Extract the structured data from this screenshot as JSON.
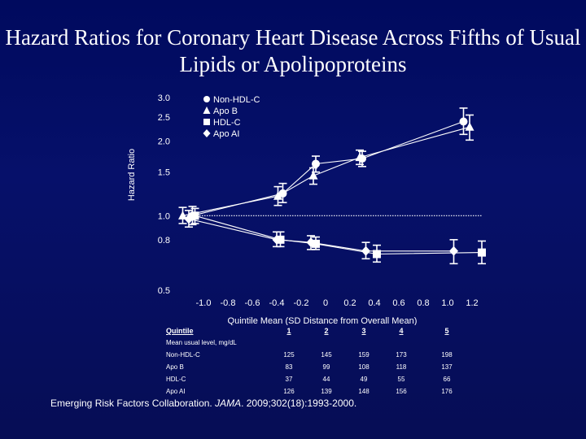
{
  "title": "Hazard Ratios for Coronary Heart Disease Across Fifths of Usual Lipids or Apolipoproteins",
  "chart_data": {
    "type": "line",
    "title": "Hazard Ratios for Coronary Heart Disease Across Fifths of Usual Lipids or Apolipoproteins",
    "xlabel": "Quintile Mean (SD Distance from Overall Mean)",
    "ylabel": "Hazard Ratio",
    "y_scale": "log",
    "xlim": [
      -1.2,
      1.2
    ],
    "ylim": [
      0.5,
      3.0
    ],
    "x_ticks": [
      "-1.0",
      "-0.8",
      "-0.6",
      "-0.4",
      "-0.2",
      "0",
      "0.2",
      "0.4",
      "0.6",
      "0.8",
      "1.0",
      "1.2"
    ],
    "x_tick_values": [
      -1.0,
      -0.8,
      -0.6,
      -0.4,
      -0.2,
      0,
      0.2,
      0.4,
      0.6,
      0.8,
      1.0,
      1.2
    ],
    "y_ticks": [
      "0.5",
      "0.8",
      "1.0",
      "1.5",
      "2.0",
      "2.5",
      "3.0"
    ],
    "y_tick_values": [
      0.5,
      0.8,
      1.0,
      1.5,
      2.0,
      2.5,
      3.0
    ],
    "reference_line": 1.0,
    "legend_position": "top",
    "series": [
      {
        "name": "Non-HDL-C",
        "marker": "circle",
        "points": [
          {
            "x": -1.09,
            "y": 1.0,
            "lo": 0.92,
            "hi": 1.09
          },
          {
            "x": -0.35,
            "y": 1.23,
            "lo": 1.13,
            "hi": 1.35
          },
          {
            "x": -0.08,
            "y": 1.62,
            "lo": 1.5,
            "hi": 1.74
          },
          {
            "x": 0.3,
            "y": 1.7,
            "lo": 1.58,
            "hi": 1.82
          },
          {
            "x": 1.13,
            "y": 2.4,
            "lo": 2.13,
            "hi": 2.72
          }
        ]
      },
      {
        "name": "Apo B",
        "marker": "triangle",
        "points": [
          {
            "x": -1.17,
            "y": 1.0,
            "lo": 0.93,
            "hi": 1.08
          },
          {
            "x": -0.39,
            "y": 1.2,
            "lo": 1.1,
            "hi": 1.31
          },
          {
            "x": -0.1,
            "y": 1.45,
            "lo": 1.34,
            "hi": 1.56
          },
          {
            "x": 0.28,
            "y": 1.72,
            "lo": 1.61,
            "hi": 1.84
          },
          {
            "x": 1.18,
            "y": 2.28,
            "lo": 2.02,
            "hi": 2.55
          }
        ]
      },
      {
        "name": "HDL-C",
        "marker": "square",
        "points": [
          {
            "x": -1.07,
            "y": 1.0,
            "lo": 0.93,
            "hi": 1.07
          },
          {
            "x": -0.37,
            "y": 0.8,
            "lo": 0.75,
            "hi": 0.86
          },
          {
            "x": -0.08,
            "y": 0.77,
            "lo": 0.73,
            "hi": 0.82
          },
          {
            "x": 0.42,
            "y": 0.7,
            "lo": 0.65,
            "hi": 0.76
          },
          {
            "x": 1.28,
            "y": 0.71,
            "lo": 0.64,
            "hi": 0.79
          }
        ]
      },
      {
        "name": "Apo AI",
        "marker": "diamond",
        "points": [
          {
            "x": -1.12,
            "y": 0.97,
            "lo": 0.9,
            "hi": 1.05
          },
          {
            "x": -0.4,
            "y": 0.8,
            "lo": 0.75,
            "hi": 0.86
          },
          {
            "x": -0.12,
            "y": 0.78,
            "lo": 0.73,
            "hi": 0.83
          },
          {
            "x": 0.33,
            "y": 0.72,
            "lo": 0.67,
            "hi": 0.78
          },
          {
            "x": 1.05,
            "y": 0.72,
            "lo": 0.64,
            "hi": 0.8
          }
        ]
      }
    ]
  },
  "table": {
    "header": {
      "label": "Quintile",
      "cols": [
        "1",
        "2",
        "3",
        "4",
        "5"
      ]
    },
    "subheader": "Mean usual level, mg/dL",
    "rows": [
      {
        "label": "Non-HDL-C",
        "values": [
          "125",
          "145",
          "159",
          "173",
          "198"
        ]
      },
      {
        "label": "Apo B",
        "values": [
          "83",
          "99",
          "108",
          "118",
          "137"
        ]
      },
      {
        "label": "HDL-C",
        "values": [
          "37",
          "44",
          "49",
          "55",
          "66"
        ]
      },
      {
        "label": "Apo AI",
        "values": [
          "126",
          "139",
          "148",
          "156",
          "176"
        ]
      }
    ]
  },
  "citation": {
    "prefix": "Emerging Risk Factors Collaboration. ",
    "journal": "JAMA",
    "suffix": ". 2009;302(18):1993-2000."
  }
}
